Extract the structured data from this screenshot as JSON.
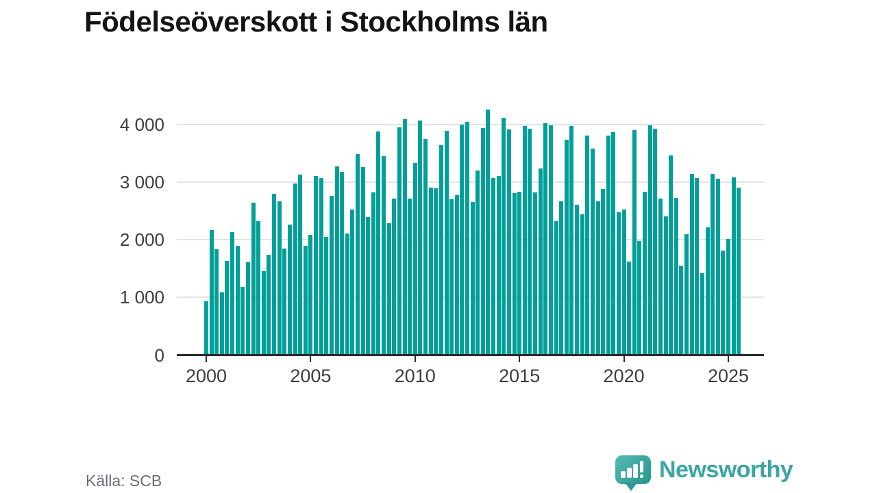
{
  "title": "Födelseöverskott i Stockholms län",
  "source": "Källa: SCB",
  "logo": {
    "text": "Newsworthy",
    "icon": "speech-bubble-with-bar-chart-and-exclamation"
  },
  "colors": {
    "bar": "#00A099",
    "axis": "#2d2d2d",
    "grid": "#e3e3e3",
    "tick_label": "#3d3d3d",
    "title": "#141414",
    "source_text": "#6c6c75",
    "logo_teal": "#3ba6a3"
  },
  "chart_data": {
    "type": "bar",
    "title": "Födelseöverskott i Stockholms län",
    "frequency": "quarterly",
    "start": "2000 Q1",
    "end": "2025 Q3",
    "grid": "horizontal",
    "legend": "none",
    "xlabel": "",
    "ylabel": "",
    "ylim": [
      0,
      4300
    ],
    "y_ticks": [
      0,
      1000,
      2000,
      3000,
      4000
    ],
    "y_tick_labels": [
      "0",
      "1 000",
      "2 000",
      "3 000",
      "4 000"
    ],
    "x_tick_years": [
      2000,
      2005,
      2010,
      2015,
      2020,
      2025
    ],
    "x_tick_labels": [
      "2000",
      "2005",
      "2010",
      "2015",
      "2020",
      "2025"
    ],
    "series_name": "Födelseöverskott (quarterly birth surplus)",
    "years": [
      {
        "year": 2000,
        "values": [
          930,
          2165,
          1835,
          1090
        ]
      },
      {
        "year": 2001,
        "values": [
          1635,
          2140,
          1895,
          1180
        ]
      },
      {
        "year": 2002,
        "values": [
          1610,
          2640,
          2320,
          1455
        ]
      },
      {
        "year": 2003,
        "values": [
          1740,
          2805,
          2675,
          1845
        ]
      },
      {
        "year": 2004,
        "values": [
          2270,
          2980,
          3135,
          1895
        ]
      },
      {
        "year": 2005,
        "values": [
          2090,
          3110,
          3070,
          2050
        ]
      },
      {
        "year": 2006,
        "values": [
          2770,
          3280,
          3180,
          2105
        ]
      },
      {
        "year": 2007,
        "values": [
          2525,
          3490,
          3260,
          2400
        ]
      },
      {
        "year": 2008,
        "values": [
          2820,
          3880,
          3460,
          2290
        ]
      },
      {
        "year": 2009,
        "values": [
          2720,
          3955,
          4100,
          2720
        ]
      },
      {
        "year": 2010,
        "values": [
          3340,
          4070,
          3750,
          2910
        ]
      },
      {
        "year": 2011,
        "values": [
          2890,
          3645,
          3890,
          2700
        ]
      },
      {
        "year": 2012,
        "values": [
          2780,
          4000,
          4045,
          2655
        ]
      },
      {
        "year": 2013,
        "values": [
          3205,
          3945,
          4265,
          3075
        ]
      },
      {
        "year": 2014,
        "values": [
          3105,
          4120,
          3915,
          2810
        ]
      },
      {
        "year": 2015,
        "values": [
          2840,
          3975,
          3935,
          2820
        ]
      },
      {
        "year": 2016,
        "values": [
          3235,
          4020,
          3985,
          2330
        ]
      },
      {
        "year": 2017,
        "values": [
          2665,
          3740,
          3975,
          2605
        ]
      },
      {
        "year": 2018,
        "values": [
          2445,
          3815,
          3580,
          2675
        ]
      },
      {
        "year": 2019,
        "values": [
          2880,
          3805,
          3875,
          2485
        ]
      },
      {
        "year": 2020,
        "values": [
          2530,
          1620,
          3905,
          1975
        ]
      },
      {
        "year": 2021,
        "values": [
          2835,
          3990,
          3935,
          2715
        ]
      },
      {
        "year": 2022,
        "values": [
          2410,
          3470,
          2725,
          1550
        ]
      },
      {
        "year": 2023,
        "values": [
          2095,
          3150,
          3070,
          1415
        ]
      },
      {
        "year": 2024,
        "values": [
          2220,
          3150,
          3060,
          1815
        ]
      },
      {
        "year": 2025,
        "values": [
          2015,
          3090,
          2910
        ]
      }
    ]
  }
}
